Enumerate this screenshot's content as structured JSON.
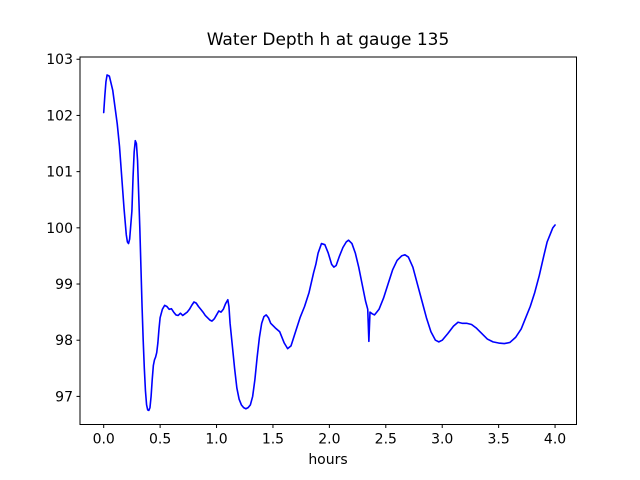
{
  "figure": {
    "background": "#ffffff",
    "frame_color": "#000000"
  },
  "chart_data": {
    "type": "line",
    "title": "Water Depth h at gauge 135",
    "xlabel": "hours",
    "ylabel": "",
    "grid": false,
    "legend": null,
    "xlim": [
      -0.21,
      4.19
    ],
    "ylim": [
      96.5,
      103.04
    ],
    "x_ticks": {
      "values": [
        0.0,
        0.5,
        1.0,
        1.5,
        2.0,
        2.5,
        3.0,
        3.5,
        4.0
      ],
      "labels": [
        "0.0",
        "0.5",
        "1.0",
        "1.5",
        "2.0",
        "2.5",
        "3.0",
        "3.5",
        "4.0"
      ]
    },
    "y_ticks": {
      "values": [
        97,
        98,
        99,
        100,
        101,
        102,
        103
      ],
      "labels": [
        "97",
        "98",
        "99",
        "100",
        "101",
        "102",
        "103"
      ]
    },
    "series": [
      {
        "name": "water-depth-gauge-135",
        "color": "#0000ff",
        "line_width": 1.6,
        "points": [
          [
            0.0,
            102.05
          ],
          [
            0.01,
            102.35
          ],
          [
            0.02,
            102.6
          ],
          [
            0.03,
            102.72
          ],
          [
            0.05,
            102.7
          ],
          [
            0.08,
            102.45
          ],
          [
            0.1,
            102.15
          ],
          [
            0.12,
            101.85
          ],
          [
            0.14,
            101.45
          ],
          [
            0.16,
            100.9
          ],
          [
            0.18,
            100.35
          ],
          [
            0.2,
            99.88
          ],
          [
            0.21,
            99.75
          ],
          [
            0.22,
            99.72
          ],
          [
            0.23,
            99.8
          ],
          [
            0.25,
            100.3
          ],
          [
            0.26,
            100.9
          ],
          [
            0.27,
            101.35
          ],
          [
            0.28,
            101.55
          ],
          [
            0.29,
            101.5
          ],
          [
            0.3,
            101.2
          ],
          [
            0.31,
            100.6
          ],
          [
            0.32,
            100.0
          ],
          [
            0.33,
            99.3
          ],
          [
            0.34,
            98.6
          ],
          [
            0.35,
            98.0
          ],
          [
            0.36,
            97.5
          ],
          [
            0.37,
            97.1
          ],
          [
            0.38,
            96.85
          ],
          [
            0.39,
            96.76
          ],
          [
            0.4,
            96.75
          ],
          [
            0.41,
            96.8
          ],
          [
            0.42,
            97.0
          ],
          [
            0.43,
            97.3
          ],
          [
            0.44,
            97.55
          ],
          [
            0.45,
            97.65
          ],
          [
            0.46,
            97.7
          ],
          [
            0.47,
            97.78
          ],
          [
            0.48,
            97.95
          ],
          [
            0.49,
            98.2
          ],
          [
            0.5,
            98.4
          ],
          [
            0.52,
            98.55
          ],
          [
            0.54,
            98.62
          ],
          [
            0.56,
            98.6
          ],
          [
            0.58,
            98.55
          ],
          [
            0.6,
            98.56
          ],
          [
            0.62,
            98.5
          ],
          [
            0.64,
            98.45
          ],
          [
            0.66,
            98.44
          ],
          [
            0.68,
            98.48
          ],
          [
            0.7,
            98.44
          ],
          [
            0.72,
            98.47
          ],
          [
            0.74,
            98.5
          ],
          [
            0.76,
            98.55
          ],
          [
            0.78,
            98.62
          ],
          [
            0.8,
            98.68
          ],
          [
            0.82,
            98.66
          ],
          [
            0.84,
            98.6
          ],
          [
            0.86,
            98.55
          ],
          [
            0.88,
            98.5
          ],
          [
            0.9,
            98.44
          ],
          [
            0.92,
            98.4
          ],
          [
            0.94,
            98.36
          ],
          [
            0.96,
            98.34
          ],
          [
            0.98,
            98.38
          ],
          [
            1.0,
            98.45
          ],
          [
            1.02,
            98.52
          ],
          [
            1.04,
            98.5
          ],
          [
            1.06,
            98.55
          ],
          [
            1.08,
            98.65
          ],
          [
            1.1,
            98.72
          ],
          [
            1.11,
            98.6
          ],
          [
            1.12,
            98.3
          ],
          [
            1.14,
            97.9
          ],
          [
            1.16,
            97.5
          ],
          [
            1.18,
            97.15
          ],
          [
            1.2,
            96.95
          ],
          [
            1.22,
            96.85
          ],
          [
            1.24,
            96.8
          ],
          [
            1.26,
            96.78
          ],
          [
            1.28,
            96.8
          ],
          [
            1.3,
            96.85
          ],
          [
            1.32,
            97.0
          ],
          [
            1.34,
            97.3
          ],
          [
            1.36,
            97.7
          ],
          [
            1.38,
            98.05
          ],
          [
            1.4,
            98.3
          ],
          [
            1.42,
            98.42
          ],
          [
            1.44,
            98.45
          ],
          [
            1.46,
            98.4
          ],
          [
            1.48,
            98.3
          ],
          [
            1.52,
            98.22
          ],
          [
            1.56,
            98.15
          ],
          [
            1.58,
            98.05
          ],
          [
            1.6,
            97.95
          ],
          [
            1.63,
            97.85
          ],
          [
            1.66,
            97.9
          ],
          [
            1.7,
            98.15
          ],
          [
            1.74,
            98.4
          ],
          [
            1.78,
            98.6
          ],
          [
            1.82,
            98.85
          ],
          [
            1.86,
            99.2
          ],
          [
            1.88,
            99.35
          ],
          [
            1.9,
            99.55
          ],
          [
            1.93,
            99.72
          ],
          [
            1.96,
            99.7
          ],
          [
            1.99,
            99.55
          ],
          [
            2.02,
            99.35
          ],
          [
            2.04,
            99.3
          ],
          [
            2.06,
            99.33
          ],
          [
            2.09,
            99.5
          ],
          [
            2.12,
            99.65
          ],
          [
            2.15,
            99.75
          ],
          [
            2.17,
            99.78
          ],
          [
            2.2,
            99.72
          ],
          [
            2.23,
            99.55
          ],
          [
            2.26,
            99.3
          ],
          [
            2.29,
            99.0
          ],
          [
            2.32,
            98.7
          ],
          [
            2.34,
            98.55
          ],
          [
            2.35,
            97.98
          ],
          [
            2.36,
            98.5
          ],
          [
            2.38,
            98.47
          ],
          [
            2.4,
            98.45
          ],
          [
            2.42,
            98.5
          ],
          [
            2.44,
            98.55
          ],
          [
            2.48,
            98.75
          ],
          [
            2.52,
            99.0
          ],
          [
            2.56,
            99.25
          ],
          [
            2.6,
            99.42
          ],
          [
            2.64,
            99.5
          ],
          [
            2.67,
            99.52
          ],
          [
            2.7,
            99.48
          ],
          [
            2.74,
            99.3
          ],
          [
            2.78,
            99.0
          ],
          [
            2.82,
            98.7
          ],
          [
            2.86,
            98.4
          ],
          [
            2.9,
            98.15
          ],
          [
            2.94,
            98.0
          ],
          [
            2.97,
            97.97
          ],
          [
            3.0,
            98.0
          ],
          [
            3.05,
            98.12
          ],
          [
            3.1,
            98.25
          ],
          [
            3.14,
            98.32
          ],
          [
            3.18,
            98.3
          ],
          [
            3.22,
            98.3
          ],
          [
            3.26,
            98.28
          ],
          [
            3.3,
            98.22
          ],
          [
            3.35,
            98.12
          ],
          [
            3.4,
            98.02
          ],
          [
            3.45,
            97.97
          ],
          [
            3.5,
            97.95
          ],
          [
            3.55,
            97.94
          ],
          [
            3.6,
            97.96
          ],
          [
            3.65,
            98.05
          ],
          [
            3.7,
            98.2
          ],
          [
            3.74,
            98.4
          ],
          [
            3.78,
            98.6
          ],
          [
            3.82,
            98.85
          ],
          [
            3.86,
            99.15
          ],
          [
            3.9,
            99.5
          ],
          [
            3.93,
            99.75
          ],
          [
            3.96,
            99.9
          ],
          [
            3.98,
            100.0
          ],
          [
            4.0,
            100.05
          ]
        ]
      }
    ]
  }
}
